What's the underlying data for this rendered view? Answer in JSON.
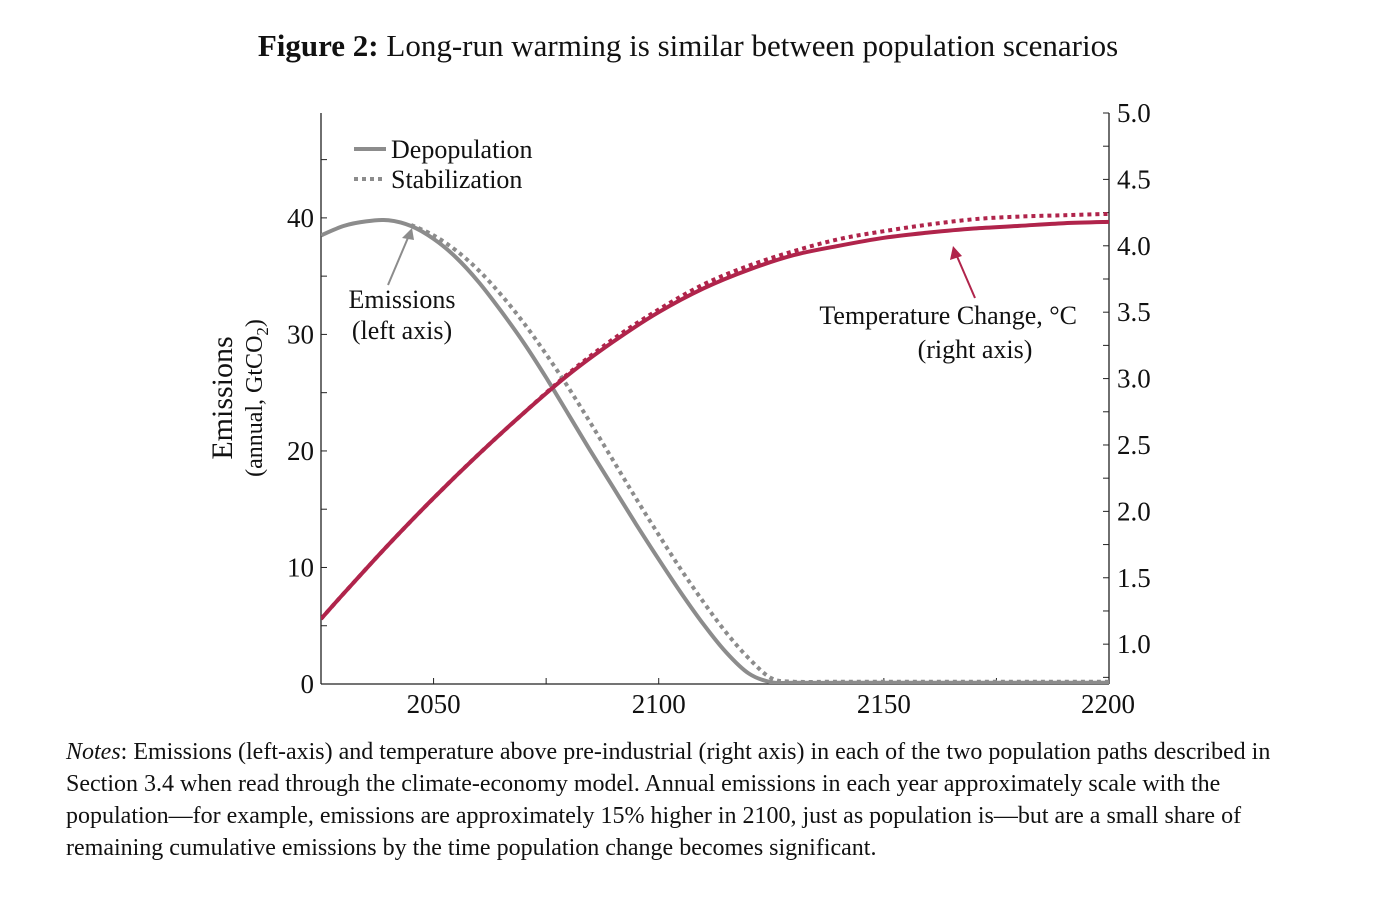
{
  "figure": {
    "number_label": "Figure 2:",
    "title": "Long-run warming is similar between population scenarios"
  },
  "notes": {
    "label": "Notes",
    "text": ": Emissions (left-axis) and temperature above pre-industrial (right axis) in each of the two population paths described in Section 3.4 when read through the climate-economy model. Annual emissions in each year approximately scale with the population—for example, emissions are approximately 15% higher in 2100, just as population is—but are a small share of remaining cumulative emissions by the time population change becomes significant."
  },
  "colors": {
    "emissions": "#8c8c8c",
    "temperature": "#b0244b",
    "axis": "#222222"
  },
  "chart_data": {
    "type": "line",
    "x_range": [
      2025,
      2200
    ],
    "x_ticks": [
      2050,
      2100,
      2150,
      2200
    ],
    "y_left": {
      "label_main": "Emissions",
      "label_sub_prefix": "(annual, GtCO",
      "label_sub_subscript": "2",
      "label_sub_suffix": ")",
      "range": [
        0,
        49
      ],
      "ticks": [
        0,
        10,
        20,
        30,
        40
      ]
    },
    "y_right": {
      "range": [
        0.7,
        5.0
      ],
      "ticks": [
        "1.0",
        "1.5",
        "2.0",
        "2.5",
        "3.0",
        "3.5",
        "4.0",
        "4.5",
        "5.0"
      ]
    },
    "legend": {
      "placement": "top-left",
      "entries": [
        {
          "name": "Depopulation",
          "style": "solid"
        },
        {
          "name": "Stabilization",
          "style": "dotted"
        }
      ]
    },
    "annotations": {
      "emissions": [
        "Emissions",
        "(left axis)"
      ],
      "temperature": [
        "Temperature Change, °C",
        "(right axis)"
      ]
    },
    "series": [
      {
        "name": "Depopulation",
        "variable": "Emissions",
        "axis": "left",
        "style": "solid",
        "x": [
          2025,
          2030,
          2035,
          2040,
          2045,
          2050,
          2055,
          2060,
          2065,
          2070,
          2075,
          2080,
          2085,
          2090,
          2095,
          2100,
          2105,
          2110,
          2115,
          2120,
          2125,
          2130,
          2140,
          2150,
          2160,
          2170,
          2180,
          2190,
          2200
        ],
        "y": [
          38.5,
          39.3,
          39.7,
          39.8,
          39.3,
          38.2,
          36.6,
          34.5,
          32.0,
          29.3,
          26.3,
          23.1,
          19.9,
          16.8,
          13.7,
          10.7,
          7.8,
          5.1,
          2.7,
          0.9,
          0.15,
          0.1,
          0.1,
          0.1,
          0.1,
          0.1,
          0.1,
          0.1,
          0.1
        ]
      },
      {
        "name": "Stabilization",
        "variable": "Emissions",
        "axis": "left",
        "style": "dotted",
        "x": [
          2045,
          2050,
          2055,
          2060,
          2065,
          2070,
          2075,
          2080,
          2085,
          2090,
          2095,
          2100,
          2105,
          2110,
          2115,
          2120,
          2125,
          2130,
          2140,
          2150,
          2160,
          2170,
          2180,
          2190,
          2200
        ],
        "y": [
          39.4,
          38.5,
          37.2,
          35.5,
          33.4,
          31.0,
          28.3,
          25.4,
          22.3,
          19.1,
          15.9,
          12.8,
          9.8,
          7.0,
          4.4,
          2.2,
          0.5,
          0.2,
          0.2,
          0.2,
          0.2,
          0.2,
          0.2,
          0.2,
          0.2
        ]
      },
      {
        "name": "Depopulation",
        "variable": "Temperature",
        "axis": "right",
        "style": "solid",
        "x": [
          2025,
          2030,
          2040,
          2050,
          2060,
          2070,
          2080,
          2090,
          2100,
          2110,
          2120,
          2130,
          2140,
          2150,
          2160,
          2170,
          2180,
          2190,
          2200
        ],
        "y": [
          1.19,
          1.38,
          1.75,
          2.1,
          2.43,
          2.74,
          3.03,
          3.28,
          3.5,
          3.68,
          3.82,
          3.93,
          4.0,
          4.06,
          4.1,
          4.13,
          4.15,
          4.17,
          4.18
        ]
      },
      {
        "name": "Stabilization",
        "variable": "Temperature",
        "axis": "right",
        "style": "dotted",
        "x": [
          2025,
          2030,
          2040,
          2050,
          2060,
          2070,
          2080,
          2090,
          2100,
          2110,
          2120,
          2130,
          2140,
          2150,
          2160,
          2170,
          2180,
          2190,
          2200
        ],
        "y": [
          1.19,
          1.38,
          1.75,
          2.1,
          2.43,
          2.74,
          3.04,
          3.3,
          3.52,
          3.71,
          3.85,
          3.96,
          4.05,
          4.11,
          4.16,
          4.2,
          4.22,
          4.23,
          4.24
        ]
      }
    ]
  }
}
